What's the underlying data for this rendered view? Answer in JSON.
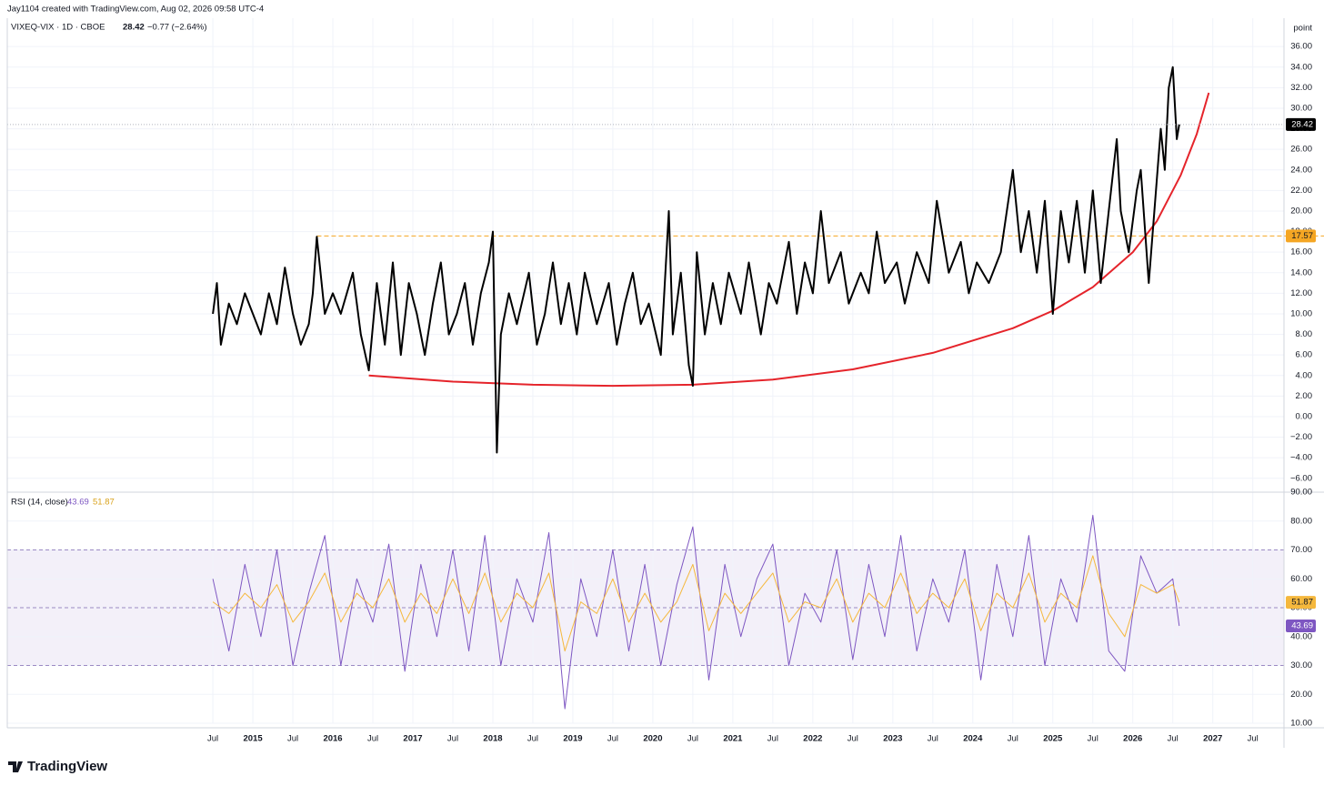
{
  "header": {
    "credit": "Jay1104 created with TradingView.com, Aug 02, 2026 09:58 UTC-4",
    "unit": "point"
  },
  "footer": {
    "brand": "TradingView"
  },
  "chart_data": [
    {
      "type": "line",
      "change": "−0.77 (−2.64%)",
      "x": [
        2014.5,
        2014.55,
        2014.6,
        2014.7,
        2014.8,
        2014.9,
        2015.0,
        2015.1,
        2015.2,
        2015.3,
        2015.4,
        2015.5,
        2015.6,
        2015.7,
        2015.75,
        2015.8,
        2015.9,
        2016.0,
        2016.1,
        2016.25,
        2016.35,
        2016.45,
        2016.55,
        2016.65,
        2016.75,
        2016.85,
        2016.95,
        2017.05,
        2017.15,
        2017.25,
        2017.35,
        2017.45,
        2017.55,
        2017.65,
        2017.75,
        2017.85,
        2017.95,
        2018.0,
        2018.05,
        2018.1,
        2018.2,
        2018.3,
        2018.45,
        2018.55,
        2018.65,
        2018.75,
        2018.85,
        2018.95,
        2019.05,
        2019.15,
        2019.3,
        2019.45,
        2019.55,
        2019.65,
        2019.75,
        2019.85,
        2019.95,
        2020.1,
        2020.2,
        2020.25,
        2020.35,
        2020.45,
        2020.5,
        2020.55,
        2020.65,
        2020.75,
        2020.85,
        2020.95,
        2021.1,
        2021.2,
        2021.35,
        2021.45,
        2021.55,
        2021.7,
        2021.8,
        2021.9,
        2022.0,
        2022.1,
        2022.2,
        2022.35,
        2022.45,
        2022.6,
        2022.7,
        2022.8,
        2022.9,
        2023.05,
        2023.15,
        2023.3,
        2023.45,
        2023.55,
        2023.7,
        2023.85,
        2023.95,
        2024.05,
        2024.2,
        2024.35,
        2024.5,
        2024.6,
        2024.7,
        2024.8,
        2024.9,
        2025.0,
        2025.1,
        2025.2,
        2025.3,
        2025.4,
        2025.5,
        2025.6,
        2025.7,
        2025.8,
        2025.85,
        2025.95,
        2026.05,
        2026.1,
        2026.2,
        2026.25,
        2026.3,
        2026.35,
        2026.4,
        2026.45,
        2026.5,
        2026.55,
        2026.58
      ],
      "series": [
        {
          "name": "VIXEQ-VIX · 1D · CBOE",
          "color": "#000000",
          "values": [
            10,
            13,
            7,
            11,
            9,
            12,
            10,
            8,
            12,
            9,
            14.5,
            10,
            7,
            9,
            12,
            17.5,
            10,
            12,
            10,
            14,
            8,
            4.5,
            13,
            7,
            15,
            6,
            13,
            10,
            6,
            11,
            15,
            8,
            10,
            13,
            7,
            12,
            15,
            18,
            -3.5,
            8,
            12,
            9,
            14,
            7,
            10,
            15,
            9,
            13,
            8,
            14,
            9,
            13,
            7,
            11,
            14,
            9,
            11,
            6,
            20,
            8,
            14,
            5,
            3,
            16,
            8,
            13,
            9,
            14,
            10,
            15,
            8,
            13,
            11,
            17,
            10,
            15,
            12,
            20,
            13,
            16,
            11,
            14,
            12,
            18,
            13,
            15,
            11,
            16,
            13,
            21,
            14,
            17,
            12,
            15,
            13,
            16,
            24,
            16,
            20,
            14,
            21,
            10,
            20,
            15,
            21,
            14,
            22,
            13,
            20,
            27,
            20,
            16,
            22,
            24,
            13,
            18,
            23,
            28,
            24,
            32,
            34,
            27,
            28.42
          ]
        }
      ],
      "curve": {
        "color": "#e5242b",
        "x": [
          2016.45,
          2017.5,
          2018.5,
          2019.5,
          2020.5,
          2021.5,
          2022.5,
          2023.5,
          2024.5,
          2025.0,
          2025.5,
          2026.0,
          2026.3,
          2026.6,
          2026.8,
          2026.95
        ],
        "values": [
          4,
          3.4,
          3.1,
          3,
          3.1,
          3.6,
          4.6,
          6.2,
          8.6,
          10.3,
          12.6,
          16,
          19,
          23.5,
          27.5,
          31.5
        ]
      },
      "hline": {
        "value": 17.57,
        "start": 2015.8,
        "color": "#f5a623"
      },
      "xlim": [
        2011.93,
        2027.89
      ],
      "ylim": [
        -7.26,
        38.76
      ],
      "yticks": [
        {
          "value": -6,
          "label": "−6.00"
        },
        {
          "value": -4,
          "label": "−4.00"
        },
        {
          "value": -2,
          "label": "−2.00"
        },
        {
          "value": 0,
          "label": "0.00"
        },
        {
          "value": 2,
          "label": "2.00"
        },
        {
          "value": 4,
          "label": "4.00"
        },
        {
          "value": 6,
          "label": "6.00"
        },
        {
          "value": 8,
          "label": "8.00"
        },
        {
          "value": 10,
          "label": "10.00"
        },
        {
          "value": 12,
          "label": "12.00"
        },
        {
          "value": 14,
          "label": "14.00"
        },
        {
          "value": 16,
          "label": "16.00"
        },
        {
          "value": 18,
          "label": "18.00"
        },
        {
          "value": 20,
          "label": "20.00"
        },
        {
          "value": 22,
          "label": "22.00"
        },
        {
          "value": 24,
          "label": "24.00"
        },
        {
          "value": 26,
          "label": "26.00"
        },
        {
          "value": 28,
          "label": "28.00"
        },
        {
          "value": 30,
          "label": "30.00"
        },
        {
          "value": 32,
          "label": "32.00"
        },
        {
          "value": 34,
          "label": "34.00"
        },
        {
          "value": 36,
          "label": "36.00"
        }
      ],
      "grid": true
    },
    {
      "type": "line",
      "title": "RSI (14, close)",
      "x": [
        2014.5,
        2014.7,
        2014.9,
        2015.1,
        2015.3,
        2015.5,
        2015.7,
        2015.9,
        2016.1,
        2016.3,
        2016.5,
        2016.7,
        2016.9,
        2017.1,
        2017.3,
        2017.5,
        2017.7,
        2017.9,
        2018.1,
        2018.3,
        2018.5,
        2018.7,
        2018.9,
        2019.1,
        2019.3,
        2019.5,
        2019.7,
        2019.9,
        2020.1,
        2020.3,
        2020.5,
        2020.7,
        2020.9,
        2021.1,
        2021.3,
        2021.5,
        2021.7,
        2021.9,
        2022.1,
        2022.3,
        2022.5,
        2022.7,
        2022.9,
        2023.1,
        2023.3,
        2023.5,
        2023.7,
        2023.9,
        2024.1,
        2024.3,
        2024.5,
        2024.7,
        2024.9,
        2025.1,
        2025.3,
        2025.5,
        2025.7,
        2025.9,
        2026.1,
        2026.3,
        2026.5,
        2026.58
      ],
      "series": [
        {
          "color": "#7e57c2",
          "values": [
            60,
            35,
            65,
            40,
            70,
            30,
            55,
            75,
            30,
            60,
            45,
            72,
            28,
            65,
            40,
            70,
            35,
            75,
            30,
            60,
            45,
            76,
            15,
            60,
            40,
            70,
            35,
            65,
            30,
            58,
            78,
            25,
            65,
            40,
            60,
            72,
            30,
            55,
            45,
            70,
            32,
            65,
            40,
            75,
            35,
            60,
            45,
            70,
            25,
            65,
            40,
            75,
            30,
            60,
            45,
            82,
            35,
            28,
            68,
            55,
            60,
            43.69
          ]
        },
        {
          "color": "#f5b83d",
          "values": [
            52,
            48,
            55,
            50,
            58,
            45,
            52,
            62,
            45,
            55,
            50,
            60,
            45,
            55,
            48,
            60,
            48,
            62,
            45,
            55,
            50,
            62,
            35,
            52,
            48,
            60,
            45,
            55,
            45,
            52,
            65,
            42,
            55,
            48,
            55,
            62,
            45,
            52,
            50,
            60,
            45,
            55,
            50,
            62,
            48,
            55,
            50,
            60,
            42,
            55,
            50,
            62,
            45,
            55,
            50,
            68,
            48,
            40,
            58,
            55,
            58,
            51.87
          ]
        }
      ],
      "band": [
        30,
        70
      ],
      "levels": [
        30,
        50,
        70
      ],
      "xlim": [
        2011.93,
        2027.89
      ],
      "ylim": [
        10,
        90
      ],
      "yticks": [
        {
          "value": 10,
          "label": "10.00"
        },
        {
          "value": 20,
          "label": "20.00"
        },
        {
          "value": 30,
          "label": "30.00"
        },
        {
          "value": 40,
          "label": "40.00"
        },
        {
          "value": 50,
          "label": "50.00"
        },
        {
          "value": 60,
          "label": "60.00"
        },
        {
          "value": 70,
          "label": "70.00"
        },
        {
          "value": 80,
          "label": "80.00"
        },
        {
          "value": 90,
          "label": "90.00"
        }
      ],
      "xticks": [
        {
          "value": 2014.5,
          "label": "Jul"
        },
        2015,
        {
          "value": 2015.5,
          "label": "Jul"
        },
        2016,
        {
          "value": 2016.5,
          "label": "Jul"
        },
        2017,
        {
          "value": 2017.5,
          "label": "Jul"
        },
        2018,
        {
          "value": 2018.5,
          "label": "Jul"
        },
        2019,
        {
          "value": 2019.5,
          "label": "Jul"
        },
        2020,
        {
          "value": 2020.5,
          "label": "Jul"
        },
        2021,
        {
          "value": 2021.5,
          "label": "Jul"
        },
        2022,
        {
          "value": 2022.5,
          "label": "Jul"
        },
        2023,
        {
          "value": 2023.5,
          "label": "Jul"
        },
        2024,
        {
          "value": 2024.5,
          "label": "Jul"
        },
        2025,
        {
          "value": 2025.5,
          "label": "Jul"
        },
        2026,
        {
          "value": 2026.5,
          "label": "Jul"
        },
        2027,
        {
          "value": 2027.5,
          "label": "Jul"
        }
      ],
      "grid": true
    }
  ]
}
